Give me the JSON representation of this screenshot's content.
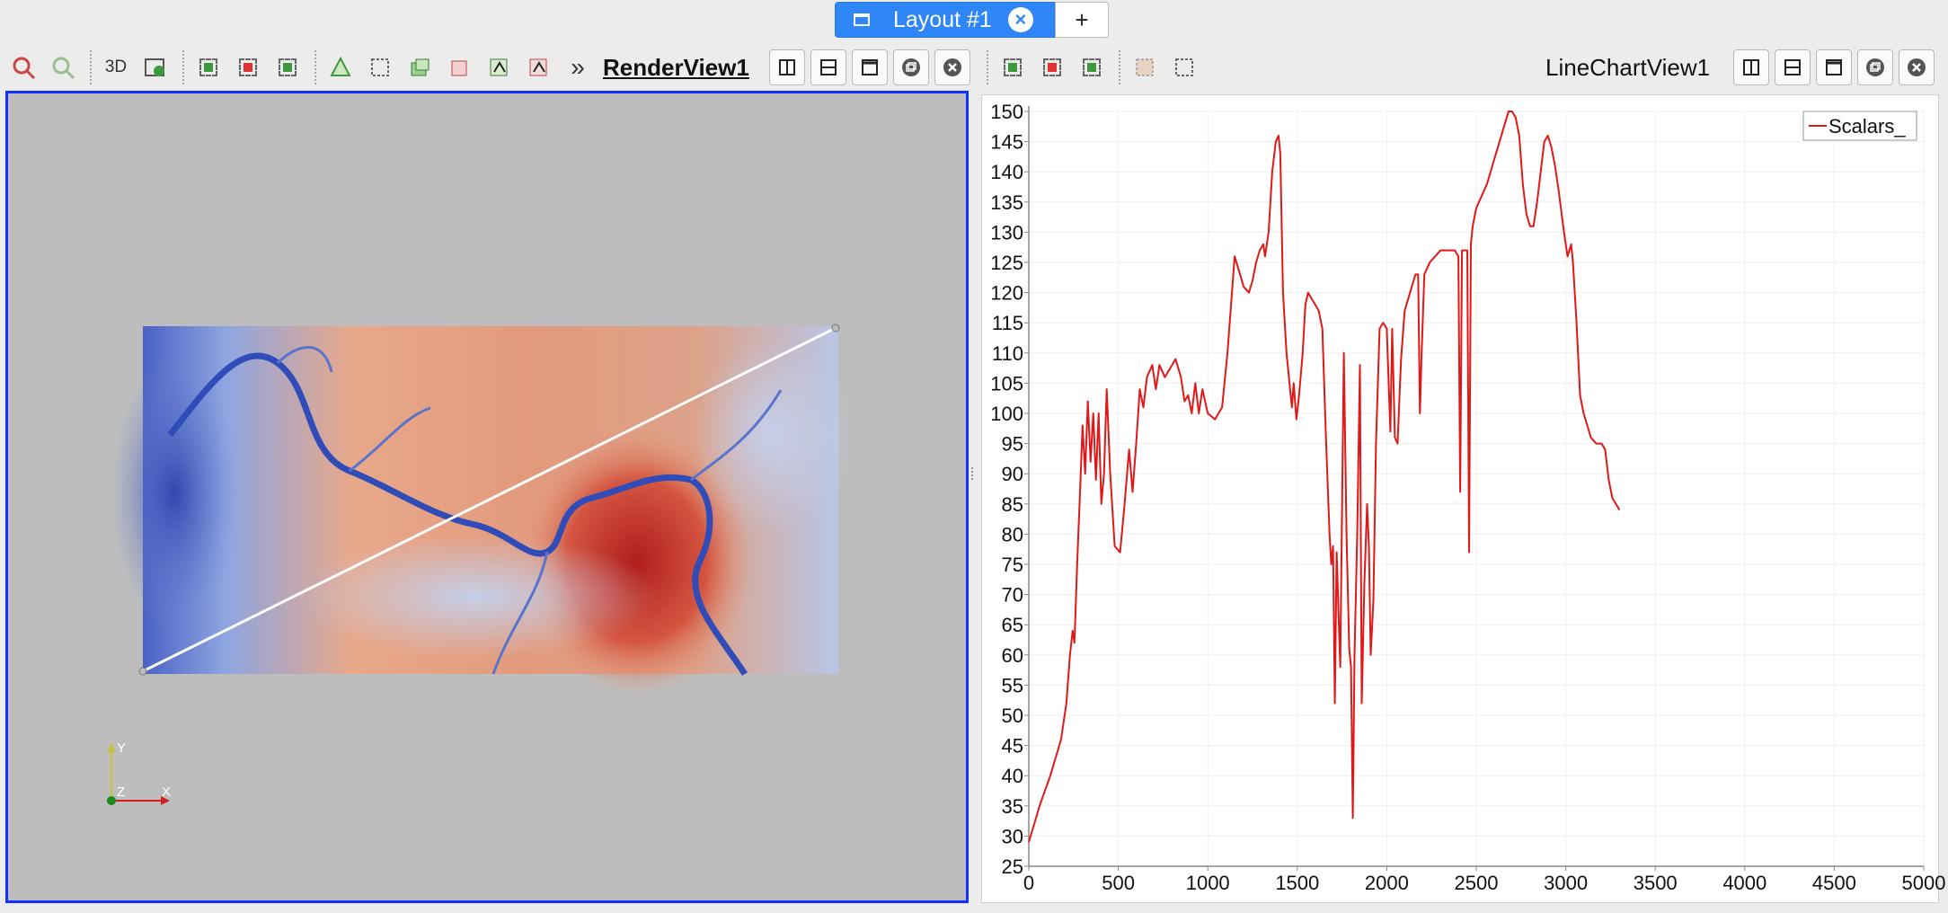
{
  "tabs": {
    "active_label": "Layout #1",
    "add_label": "+"
  },
  "left_toolbar": {
    "three_d_label": "3D",
    "more_label": "»",
    "view_title": "RenderView1"
  },
  "right_toolbar": {
    "view_title": "LineChartView1"
  },
  "render_view": {
    "axes": {
      "y": "Y",
      "z": "Z",
      "x": "X"
    },
    "colors": {
      "background": "#bdbdbd",
      "probe_line": "#ffffff",
      "low": "#3a4fc0",
      "high": "#b51f1f"
    }
  },
  "chart_data": {
    "type": "line",
    "title": "",
    "xlabel": "",
    "ylabel": "",
    "xlim": [
      0,
      5000
    ],
    "ylim": [
      25,
      150
    ],
    "x_ticks": [
      "0",
      "500",
      "1000",
      "1500",
      "2000",
      "2500",
      "3000",
      "3500",
      "4000",
      "4500",
      "5000"
    ],
    "y_ticks": [
      "150",
      "145",
      "140",
      "135",
      "130",
      "125",
      "120",
      "115",
      "110",
      "105",
      "100",
      "95",
      "90",
      "85",
      "80",
      "75",
      "70",
      "65",
      "60",
      "55",
      "50",
      "45",
      "40",
      "35",
      "30",
      "25"
    ],
    "grid": true,
    "legend": "top-right",
    "series": [
      {
        "name": "Scalars_",
        "color": "#e01818",
        "points": [
          [
            0,
            29
          ],
          [
            60,
            35
          ],
          [
            120,
            40
          ],
          [
            180,
            46
          ],
          [
            210,
            52
          ],
          [
            230,
            60
          ],
          [
            245,
            64
          ],
          [
            255,
            62
          ],
          [
            270,
            75
          ],
          [
            290,
            90
          ],
          [
            300,
            98
          ],
          [
            315,
            90
          ],
          [
            330,
            102
          ],
          [
            345,
            92
          ],
          [
            360,
            100
          ],
          [
            375,
            89
          ],
          [
            390,
            100
          ],
          [
            405,
            85
          ],
          [
            420,
            90
          ],
          [
            435,
            104
          ],
          [
            455,
            90
          ],
          [
            480,
            78
          ],
          [
            510,
            77
          ],
          [
            535,
            85
          ],
          [
            560,
            94
          ],
          [
            580,
            87
          ],
          [
            600,
            95
          ],
          [
            620,
            104
          ],
          [
            640,
            101
          ],
          [
            660,
            106
          ],
          [
            690,
            108
          ],
          [
            710,
            104
          ],
          [
            730,
            108
          ],
          [
            760,
            106
          ],
          [
            800,
            108
          ],
          [
            820,
            109
          ],
          [
            850,
            106
          ],
          [
            870,
            102
          ],
          [
            890,
            103
          ],
          [
            910,
            100
          ],
          [
            930,
            105
          ],
          [
            950,
            100
          ],
          [
            970,
            104
          ],
          [
            1000,
            100
          ],
          [
            1040,
            99
          ],
          [
            1080,
            101
          ],
          [
            1110,
            110
          ],
          [
            1130,
            118
          ],
          [
            1150,
            126
          ],
          [
            1180,
            123
          ],
          [
            1200,
            121
          ],
          [
            1230,
            120
          ],
          [
            1250,
            122
          ],
          [
            1270,
            125
          ],
          [
            1290,
            127
          ],
          [
            1310,
            128
          ],
          [
            1320,
            126
          ],
          [
            1340,
            130
          ],
          [
            1360,
            140
          ],
          [
            1380,
            145
          ],
          [
            1395,
            146
          ],
          [
            1405,
            143
          ],
          [
            1420,
            120
          ],
          [
            1440,
            110
          ],
          [
            1460,
            104
          ],
          [
            1470,
            101
          ],
          [
            1480,
            105
          ],
          [
            1495,
            99
          ],
          [
            1510,
            103
          ],
          [
            1530,
            110
          ],
          [
            1545,
            118
          ],
          [
            1560,
            120
          ],
          [
            1580,
            119
          ],
          [
            1600,
            118
          ],
          [
            1620,
            117
          ],
          [
            1640,
            114
          ],
          [
            1660,
            96
          ],
          [
            1680,
            80
          ],
          [
            1690,
            75
          ],
          [
            1700,
            78
          ],
          [
            1710,
            52
          ],
          [
            1720,
            77
          ],
          [
            1740,
            58
          ],
          [
            1760,
            110
          ],
          [
            1775,
            80
          ],
          [
            1790,
            61
          ],
          [
            1800,
            58
          ],
          [
            1810,
            33
          ],
          [
            1820,
            60
          ],
          [
            1835,
            80
          ],
          [
            1850,
            108
          ],
          [
            1860,
            52
          ],
          [
            1875,
            72
          ],
          [
            1890,
            85
          ],
          [
            1900,
            78
          ],
          [
            1910,
            60
          ],
          [
            1925,
            69
          ],
          [
            1940,
            95
          ],
          [
            1960,
            114
          ],
          [
            1980,
            115
          ],
          [
            2000,
            114
          ],
          [
            2020,
            97
          ],
          [
            2030,
            114
          ],
          [
            2045,
            96
          ],
          [
            2060,
            95
          ],
          [
            2080,
            109
          ],
          [
            2100,
            117
          ],
          [
            2120,
            119
          ],
          [
            2140,
            121
          ],
          [
            2160,
            123
          ],
          [
            2175,
            123
          ],
          [
            2185,
            100
          ],
          [
            2195,
            110
          ],
          [
            2210,
            123
          ],
          [
            2240,
            125
          ],
          [
            2270,
            126
          ],
          [
            2300,
            127
          ],
          [
            2340,
            127
          ],
          [
            2380,
            127
          ],
          [
            2400,
            126
          ],
          [
            2410,
            87
          ],
          [
            2420,
            127
          ],
          [
            2440,
            127
          ],
          [
            2450,
            127
          ],
          [
            2460,
            77
          ],
          [
            2470,
            128
          ],
          [
            2480,
            131
          ],
          [
            2500,
            134
          ],
          [
            2530,
            136
          ],
          [
            2560,
            138
          ],
          [
            2590,
            141
          ],
          [
            2620,
            144
          ],
          [
            2650,
            147
          ],
          [
            2680,
            150
          ],
          [
            2700,
            150
          ],
          [
            2720,
            149
          ],
          [
            2740,
            146
          ],
          [
            2760,
            138
          ],
          [
            2780,
            133
          ],
          [
            2800,
            131
          ],
          [
            2820,
            131
          ],
          [
            2840,
            135
          ],
          [
            2860,
            140
          ],
          [
            2880,
            145
          ],
          [
            2900,
            146
          ],
          [
            2920,
            144
          ],
          [
            2940,
            141
          ],
          [
            2960,
            137
          ],
          [
            2990,
            130
          ],
          [
            3010,
            126
          ],
          [
            3030,
            128
          ],
          [
            3040,
            125
          ],
          [
            3060,
            115
          ],
          [
            3080,
            103
          ],
          [
            3100,
            100
          ],
          [
            3120,
            98
          ],
          [
            3140,
            96
          ],
          [
            3170,
            95
          ],
          [
            3200,
            95
          ],
          [
            3220,
            94
          ],
          [
            3240,
            89
          ],
          [
            3260,
            86
          ],
          [
            3280,
            85
          ],
          [
            3300,
            84
          ]
        ]
      }
    ]
  }
}
